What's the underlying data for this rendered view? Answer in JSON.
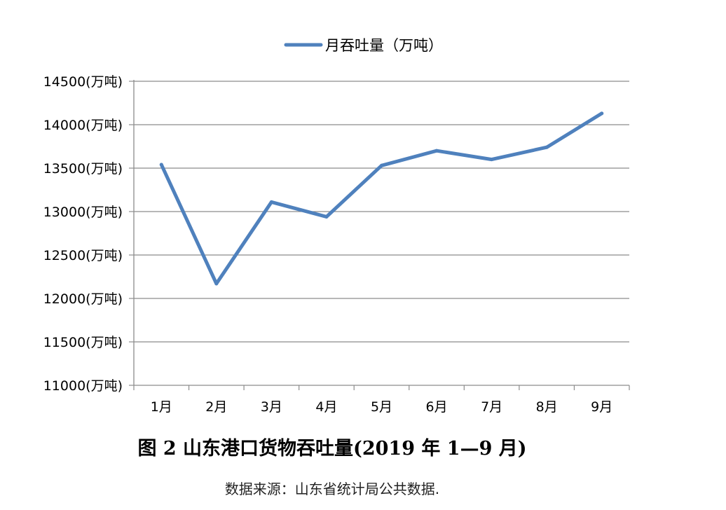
{
  "chart_data": {
    "type": "line",
    "categories": [
      "1月",
      "2月",
      "3月",
      "4月",
      "5月",
      "6月",
      "7月",
      "8月",
      "9月"
    ],
    "series": [
      {
        "name": "月吞吐量（万吨）",
        "values": [
          13540,
          12170,
          13110,
          12940,
          13530,
          13700,
          13600,
          13740,
          14130
        ],
        "color": "#4f81bd"
      }
    ],
    "ylim": [
      11000,
      14500
    ],
    "yticks": [
      11000,
      11500,
      12000,
      12500,
      13000,
      13500,
      14000,
      14500
    ],
    "ytick_unit": "(万吨)",
    "grid": true,
    "legend_position": "top",
    "title": "图 2   山东港口货物吞吐量(2019 年 1—9 月)",
    "source_note": "数据来源：山东省统计局公共数据."
  }
}
